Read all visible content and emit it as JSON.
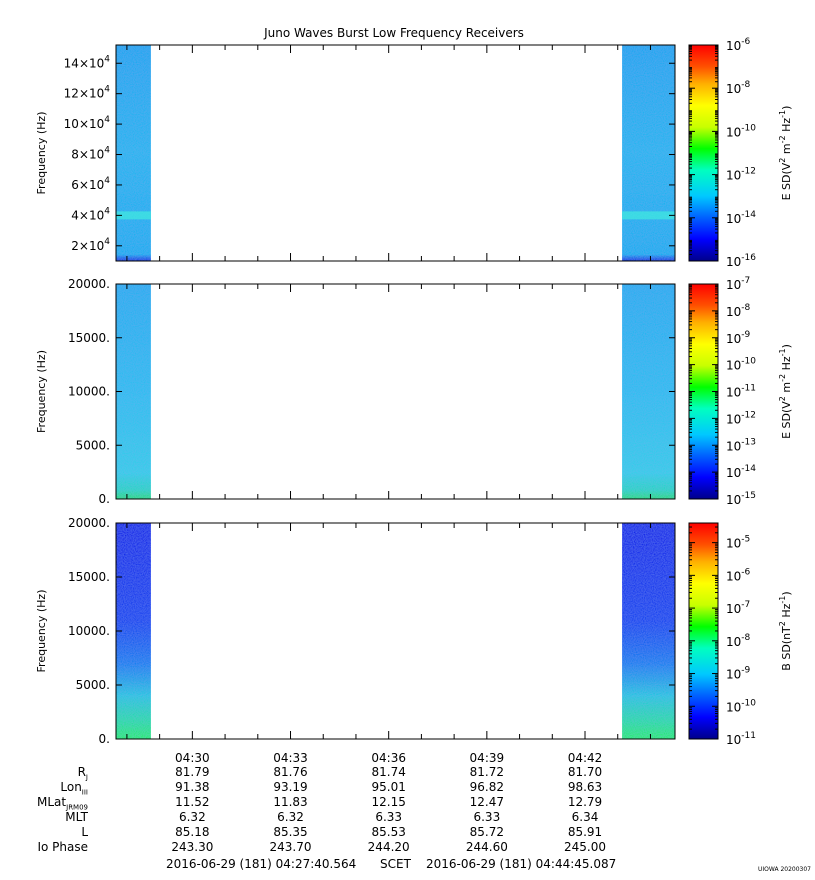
{
  "title": "Juno Waves Burst Low Frequency Receivers",
  "colors": {
    "colormap": [
      "#00008a",
      "#0000ff",
      "#0060ff",
      "#00c8ff",
      "#00ffc0",
      "#00ff00",
      "#c8ff00",
      "#ffff00",
      "#ffb000",
      "#ff5000",
      "#ff0000"
    ]
  },
  "chart_data": [
    {
      "type": "heatmap",
      "ylabel": "Frequency (Hz)",
      "ylim": [
        10000,
        152000
      ],
      "yticks": [
        {
          "v": 20000,
          "m": "2"
        },
        {
          "v": 40000,
          "m": "4"
        },
        {
          "v": 60000,
          "m": "6"
        },
        {
          "v": 80000,
          "m": "8"
        },
        {
          "v": 100000,
          "m": "10"
        },
        {
          "v": 120000,
          "m": "12"
        },
        {
          "v": 140000,
          "m": "14"
        }
      ],
      "ytick_suffix": "×10",
      "ytick_exp": "4",
      "data_segments": [
        [
          "04:27:40",
          "04:28:44"
        ],
        [
          "04:43:08",
          "04:44:45"
        ]
      ],
      "colorbar": {
        "label": "E SD(V",
        "ticks": [
          "-6",
          "-8",
          "-10",
          "-12",
          "-14",
          "-16"
        ],
        "log_range": [
          -16,
          -6
        ]
      },
      "features": "enhanced emission band near 4×10^4 Hz"
    },
    {
      "type": "heatmap",
      "ylabel": "Frequency (Hz)",
      "ylim": [
        0,
        20000
      ],
      "yticks": [
        {
          "v": 0,
          "t": "0."
        },
        {
          "v": 5000,
          "t": "5000."
        },
        {
          "v": 10000,
          "t": "10000."
        },
        {
          "v": 15000,
          "t": "15000."
        },
        {
          "v": 20000,
          "t": "20000."
        }
      ],
      "data_segments": [
        [
          "04:27:40",
          "04:28:44"
        ],
        [
          "04:43:08",
          "04:44:45"
        ]
      ],
      "colorbar": {
        "label": "E SD(V",
        "ticks": [
          "-7",
          "-8",
          "-9",
          "-10",
          "-11",
          "-12",
          "-13",
          "-14",
          "-15"
        ],
        "log_range": [
          -15,
          -7
        ]
      }
    },
    {
      "type": "heatmap",
      "ylabel": "Frequency (Hz)",
      "ylim": [
        0,
        20000
      ],
      "yticks": [
        {
          "v": 0,
          "t": "0."
        },
        {
          "v": 5000,
          "t": "5000."
        },
        {
          "v": 10000,
          "t": "10000."
        },
        {
          "v": 15000,
          "t": "15000."
        },
        {
          "v": 20000,
          "t": "20000."
        }
      ],
      "data_segments": [
        [
          "04:27:40",
          "04:28:44"
        ],
        [
          "04:43:08",
          "04:44:45"
        ]
      ],
      "colorbar": {
        "label": "B SD(nT",
        "ticks": [
          "-5",
          "-6",
          "-7",
          "-8",
          "-9",
          "-10",
          "-11"
        ],
        "log_range": [
          -11,
          -4.4
        ]
      }
    }
  ],
  "xaxis": {
    "start": "04:27:40",
    "end": "04:44:45",
    "tick_labels": [
      "04:30",
      "04:33",
      "04:36",
      "04:39",
      "04:42"
    ]
  },
  "ephemeris": {
    "rows": [
      {
        "label": "R",
        "sub": "J",
        "values": [
          "81.79",
          "81.76",
          "81.74",
          "81.72",
          "81.70"
        ]
      },
      {
        "label": "Lon",
        "sub": "III",
        "values": [
          "91.38",
          "93.19",
          "95.01",
          "96.82",
          "98.63"
        ]
      },
      {
        "label": "MLat",
        "sub": "JRM09",
        "values": [
          "11.52",
          "11.83",
          "12.15",
          "12.47",
          "12.79"
        ]
      },
      {
        "label": "MLT",
        "sub": "",
        "values": [
          "6.32",
          "6.32",
          "6.33",
          "6.33",
          "6.34"
        ]
      },
      {
        "label": "L",
        "sub": "",
        "values": [
          "85.18",
          "85.35",
          "85.53",
          "85.72",
          "85.91"
        ]
      },
      {
        "label": "Io Phase",
        "sub": "",
        "values": [
          "243.30",
          "243.70",
          "244.20",
          "244.60",
          "245.00"
        ]
      }
    ]
  },
  "footer": {
    "start": "2016-06-29 (181) 04:27:40.564",
    "scet": "SCET",
    "end": "2016-06-29 (181) 04:44:45.087"
  },
  "stamp": "UIOWA 20200307"
}
